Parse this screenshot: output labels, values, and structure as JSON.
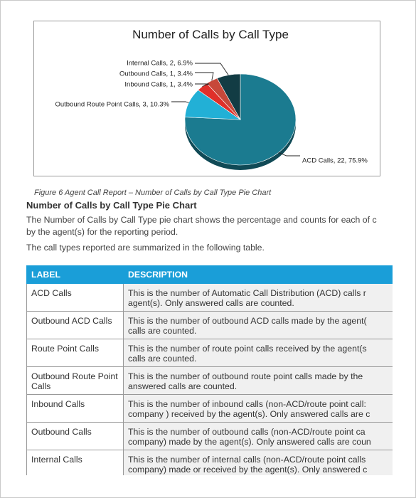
{
  "chart_data": {
    "type": "pie",
    "title": "Number of Calls by Call Type",
    "slices": [
      {
        "label": "ACD Calls, 22, 75.9%",
        "name": "ACD Calls",
        "value": 22,
        "percent": 75.9,
        "color": "#1b7b90"
      },
      {
        "label": "Outbound Route Point Calls, 3, 10.3%",
        "name": "Outbound Route Point Calls",
        "value": 3,
        "percent": 10.3,
        "color": "#22b0d6"
      },
      {
        "label": "Inbound Calls, 1, 3.4%",
        "name": "Inbound Calls",
        "value": 1,
        "percent": 3.4,
        "color": "#e0302a"
      },
      {
        "label": "Outbound Calls, 1, 3.4%",
        "name": "Outbound Calls",
        "value": 1,
        "percent": 3.4,
        "color": "#c7483a"
      },
      {
        "label": "Internal Calls, 2, 6.9%",
        "name": "Internal Calls",
        "value": 2,
        "percent": 6.9,
        "color": "#123c44"
      }
    ]
  },
  "caption": "Figure 6 Agent Call Report – Number of Calls by Call Type Pie Chart",
  "heading": "Number of Calls by Call Type Pie Chart",
  "para1": {
    "line1": "The Number of Calls by Call Type pie chart shows the percentage and counts for each of c",
    "line2": "by the agent(s) for the reporting period."
  },
  "para2": "The call types reported are summarized in the following table.",
  "table": {
    "headers": [
      "LABEL",
      "DESCRIPTION"
    ],
    "rows": [
      {
        "label": "ACD Calls",
        "desc1": "This is the number of Automatic Call Distribution (ACD) calls r",
        "desc2": "agent(s). Only answered calls are counted."
      },
      {
        "label": "Outbound ACD Calls",
        "desc1": "This is the number of outbound ACD calls made by the agent(",
        "desc2": "calls are counted."
      },
      {
        "label": "Route Point Calls",
        "desc1": "This is the number of route point calls received by the agent(s",
        "desc2": "calls are counted."
      },
      {
        "label": "Outbound Route Point Calls",
        "desc1": "This is the number of outbound route point calls made by the",
        "desc2": "answered calls are counted."
      },
      {
        "label": "Inbound Calls",
        "desc1": "This is the number of inbound calls (non-ACD/route point call:",
        "desc2": "company ) received by the agent(s). Only answered calls are c"
      },
      {
        "label": "Outbound Calls",
        "desc1": "This is the number of outbound calls (non-ACD/route point ca",
        "desc2": "company) made by the agent(s). Only answered calls are coun"
      },
      {
        "label": "Internal Calls",
        "desc1": "This is the number of internal calls (non-ACD/route point calls",
        "desc2": "company) made or received by the agent(s). Only answered c"
      }
    ]
  }
}
